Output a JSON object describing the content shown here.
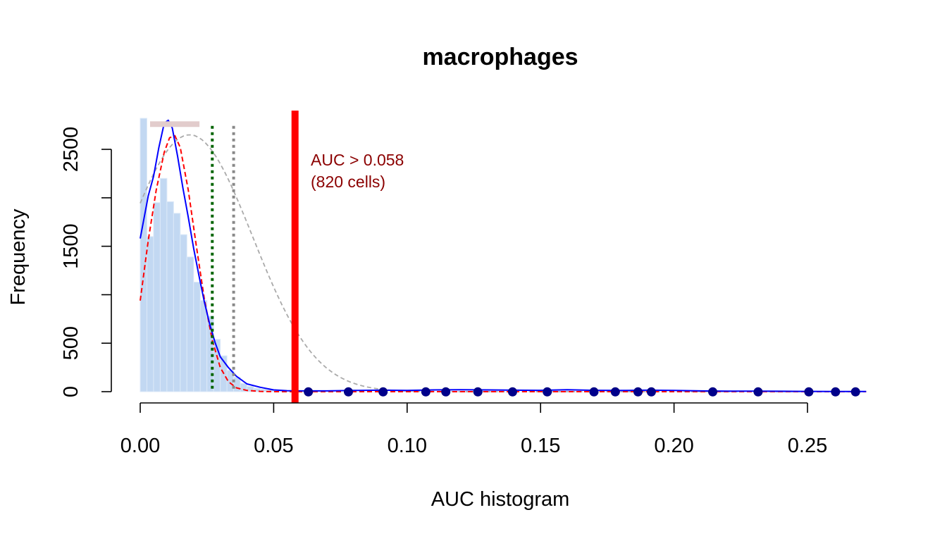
{
  "chart_data": {
    "type": "histogram",
    "title": "macrophages",
    "xlabel": "AUC histogram",
    "ylabel": "Frequency",
    "xlim": [
      0,
      0.272
    ],
    "ylim": [
      0,
      2800
    ],
    "x_ticks": [
      0.0,
      0.05,
      0.1,
      0.15,
      0.2,
      0.25
    ],
    "x_tick_labels": [
      "0.00",
      "0.05",
      "0.10",
      "0.15",
      "0.20",
      "0.25"
    ],
    "y_ticks": [
      0,
      500,
      1500,
      2500
    ],
    "y_tick_labels": [
      "0",
      "500",
      "1500",
      "2500"
    ],
    "grid": false,
    "colors": {
      "bars": "#c2d8f2",
      "bar_border": "#dce9f8",
      "density": "#0000ff",
      "fit_dashed": "#ff0000",
      "normal_dashed": "#aaaaaa",
      "threshold": "#ff0000",
      "green_line": "#006400",
      "gray_line": "#888888",
      "range_bar": "#e2cccc",
      "points": "#00008b",
      "annotation": "#8b0000"
    },
    "histogram": {
      "bin_width": 0.0025,
      "counts": [
        2820,
        1600,
        1950,
        2200,
        1960,
        1840,
        1620,
        1390,
        1130,
        940,
        780,
        540,
        370,
        220,
        150,
        85,
        55,
        35,
        25,
        20,
        15,
        12,
        10,
        8,
        6,
        4,
        3,
        2,
        2,
        1
      ]
    },
    "density_curve": {
      "x": [
        0.0,
        0.003,
        0.005,
        0.007,
        0.009,
        0.0105,
        0.012,
        0.014,
        0.016,
        0.018,
        0.02,
        0.022,
        0.024,
        0.026,
        0.028,
        0.03,
        0.033,
        0.036,
        0.04,
        0.045,
        0.05,
        0.055,
        0.06,
        0.07,
        0.08,
        0.09,
        0.1,
        0.11,
        0.12,
        0.13,
        0.14,
        0.15,
        0.16,
        0.17,
        0.18,
        0.19,
        0.2,
        0.21,
        0.22,
        0.23,
        0.24,
        0.25,
        0.26,
        0.272
      ],
      "y": [
        1580,
        2020,
        2220,
        2520,
        2770,
        2800,
        2720,
        2430,
        2100,
        1800,
        1480,
        1200,
        930,
        700,
        510,
        360,
        250,
        160,
        80,
        45,
        18,
        10,
        8,
        8,
        12,
        15,
        12,
        18,
        20,
        18,
        15,
        14,
        20,
        14,
        12,
        15,
        12,
        8,
        6,
        6,
        4,
        3,
        2,
        2
      ]
    },
    "fit_dashed_curve": {
      "x": [
        0.0,
        0.003,
        0.006,
        0.009,
        0.011,
        0.013,
        0.015,
        0.018,
        0.021,
        0.024,
        0.027,
        0.03,
        0.033,
        0.036,
        0.04,
        0.045,
        0.05,
        0.06,
        0.08,
        0.1,
        0.15,
        0.2,
        0.25,
        0.272
      ],
      "y": [
        940,
        1560,
        2080,
        2470,
        2620,
        2640,
        2520,
        2080,
        1510,
        960,
        530,
        250,
        105,
        40,
        12,
        3,
        0,
        0,
        0,
        0,
        0,
        0,
        0,
        0
      ]
    },
    "normal_dashed_curve": {
      "mean": 0.0185,
      "sd": 0.0235,
      "peak": 2650,
      "x_range": [
        0.0,
        0.272
      ]
    },
    "threshold": {
      "value": 0.058,
      "label_line1": "AUC > 0.058",
      "label_line2": "(820 cells)"
    },
    "vertical_lines": [
      {
        "name": "green-dotted-line",
        "x": 0.027,
        "style": "dotted",
        "color": "#006400"
      },
      {
        "name": "gray-dotted-line",
        "x": 0.035,
        "style": "dotted",
        "color": "#888888"
      }
    ],
    "range_bar": {
      "x_start": 0.0037,
      "x_end": 0.0222,
      "y": 2760
    },
    "points": {
      "x": [
        0.063,
        0.078,
        0.091,
        0.107,
        0.1145,
        0.1265,
        0.1395,
        0.1525,
        0.17,
        0.178,
        0.1865,
        0.1915,
        0.2145,
        0.2315,
        0.2505,
        0.2605,
        0.268
      ],
      "y": [
        5,
        5,
        5,
        5,
        5,
        5,
        5,
        5,
        5,
        5,
        5,
        5,
        5,
        5,
        5,
        5,
        5
      ]
    }
  }
}
